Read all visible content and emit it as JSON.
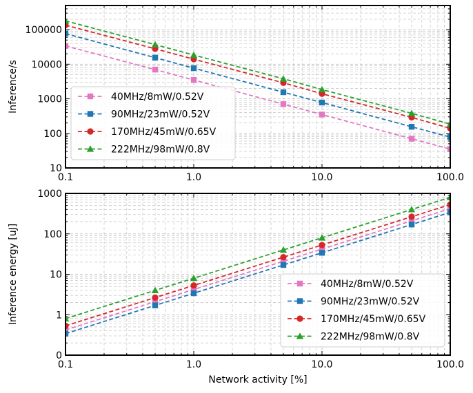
{
  "chart_data": [
    {
      "type": "line",
      "xlabel": "",
      "ylabel": "Inference/s",
      "xscale": "log",
      "yscale": "log",
      "xlim": [
        0.1,
        100
      ],
      "ylim": [
        10,
        500000
      ],
      "xticks": [
        0.1,
        1,
        10,
        100
      ],
      "xtick_labels": [
        "0.1",
        "1.0",
        "10.0",
        "100.0"
      ],
      "yticks": [
        10,
        100,
        1000,
        10000,
        100000
      ],
      "ytick_labels": [
        "10",
        "100",
        "1000",
        "10000",
        "100000"
      ],
      "grid": true,
      "legend_position": "lower-left",
      "x": [
        0.1,
        0.5,
        1,
        5,
        10,
        50,
        100
      ],
      "series": [
        {
          "name": "40MHz/8mW/0.52V",
          "color": "#e377c2",
          "marker": "square",
          "values": [
            34000,
            7000,
            3500,
            700,
            350,
            70,
            35
          ]
        },
        {
          "name": "90MHz/23mW/0.52V",
          "color": "#1f77b4",
          "marker": "square",
          "values": [
            77000,
            15500,
            7700,
            1550,
            780,
            155,
            78
          ]
        },
        {
          "name": "170MHz/45mW/0.65V",
          "color": "#d62728",
          "marker": "circle",
          "values": [
            135000,
            28000,
            14000,
            2900,
            1400,
            290,
            140
          ]
        },
        {
          "name": "222MHz/98mW/0.8V",
          "color": "#2ca02c",
          "marker": "triangle",
          "values": [
            180000,
            37000,
            18500,
            3800,
            1850,
            380,
            185
          ]
        }
      ]
    },
    {
      "type": "line",
      "xlabel": "Network activity [%]",
      "ylabel": "Inference energy [uJ]",
      "xscale": "log",
      "yscale": "log",
      "xlim": [
        0.1,
        100
      ],
      "ylim": [
        0.1,
        1000
      ],
      "xticks": [
        0.1,
        1,
        10,
        100
      ],
      "xtick_labels": [
        "0.1",
        "1.0",
        "10.0",
        "100.0"
      ],
      "yticks": [
        0.1,
        1,
        10,
        100,
        1000
      ],
      "ytick_labels": [
        "0",
        "1",
        "10",
        "100",
        "1000"
      ],
      "grid": true,
      "legend_position": "lower-right",
      "x": [
        0.1,
        0.5,
        1,
        5,
        10,
        50,
        100
      ],
      "series": [
        {
          "name": "40MHz/8mW/0.52V",
          "color": "#e377c2",
          "marker": "square",
          "values": [
            0.42,
            2.1,
            4.2,
            21,
            42,
            210,
            420
          ]
        },
        {
          "name": "90MHz/23mW/0.52V",
          "color": "#1f77b4",
          "marker": "square",
          "values": [
            0.34,
            1.7,
            3.4,
            17,
            34,
            170,
            340
          ]
        },
        {
          "name": "170MHz/45mW/0.65V",
          "color": "#d62728",
          "marker": "circle",
          "values": [
            0.53,
            2.65,
            5.3,
            26.5,
            53,
            265,
            530
          ]
        },
        {
          "name": "222MHz/98mW/0.8V",
          "color": "#2ca02c",
          "marker": "triangle",
          "values": [
            0.8,
            4,
            8,
            40,
            80,
            400,
            800
          ]
        }
      ]
    }
  ]
}
